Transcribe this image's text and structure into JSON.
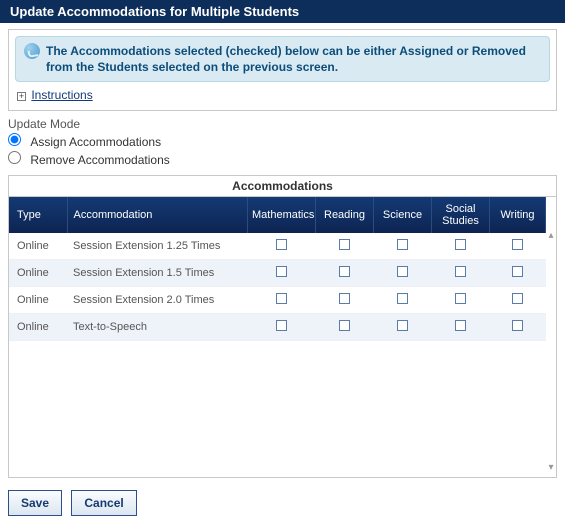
{
  "title": "Update Accommodations for Multiple Students",
  "infoText": "The Accommodations selected (checked) below can be either Assigned or Removed from the Students selected on the previous screen.",
  "instructionsLabel": "Instructions",
  "updateMode": {
    "label": "Update Mode",
    "assignLabel": "Assign Accommodations",
    "removeLabel": "Remove Accommodations",
    "selected": "assign"
  },
  "grid": {
    "title": "Accommodations",
    "columns": {
      "type": "Type",
      "accommodation": "Accommodation",
      "mathematics": "Mathematics",
      "reading": "Reading",
      "science": "Science",
      "socialStudies": "Social Studies",
      "writing": "Writing"
    },
    "rows": [
      {
        "type": "Online",
        "accommodation": "Session Extension 1.25 Times"
      },
      {
        "type": "Online",
        "accommodation": "Session Extension 1.5 Times"
      },
      {
        "type": "Online",
        "accommodation": "Session Extension 2.0 Times"
      },
      {
        "type": "Online",
        "accommodation": "Text-to-Speech"
      }
    ]
  },
  "buttons": {
    "save": "Save",
    "cancel": "Cancel"
  },
  "colors": {
    "headerBg": "#0d2e5a",
    "tableHeaderStart": "#143a74",
    "tableHeaderEnd": "#0d2452",
    "infoBg": "#d9eaf3",
    "altRow": "#eef3fa",
    "linkColor": "#153a7a"
  }
}
